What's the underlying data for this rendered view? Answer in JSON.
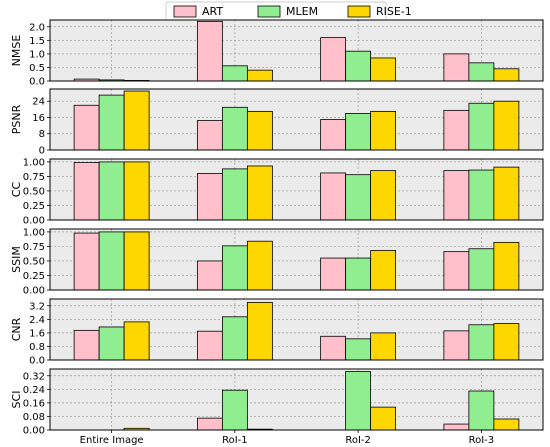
{
  "legend": [
    {
      "label": "ART",
      "color": "#ffc0cb"
    },
    {
      "label": "MLEM",
      "color": "#90ee90"
    },
    {
      "label": "RISE-1",
      "color": "#ffd700"
    }
  ],
  "chart_data": [
    {
      "type": "bar",
      "ylabel": "NMSE",
      "categories": [
        "Entire Image",
        "RoI-1",
        "RoI-2",
        "RoI-3"
      ],
      "ylim": [
        0,
        2.25
      ],
      "yticks": [
        "0.0",
        "0.5",
        "1.0",
        "1.5",
        "2.0"
      ],
      "ytick_values": [
        0,
        0.5,
        1.0,
        1.5,
        2.0
      ],
      "series": [
        {
          "name": "ART",
          "values": [
            0.07,
            2.2,
            1.6,
            1.0
          ]
        },
        {
          "name": "MLEM",
          "values": [
            0.04,
            0.56,
            1.1,
            0.67
          ]
        },
        {
          "name": "RISE-1",
          "values": [
            0.02,
            0.4,
            0.85,
            0.45
          ]
        }
      ]
    },
    {
      "type": "bar",
      "ylabel": "PSNR",
      "categories": [
        "Entire Image",
        "RoI-1",
        "RoI-2",
        "RoI-3"
      ],
      "ylim": [
        0,
        30
      ],
      "yticks": [
        "0",
        "8",
        "16",
        "24"
      ],
      "ytick_values": [
        0,
        8,
        16,
        24
      ],
      "series": [
        {
          "name": "ART",
          "values": [
            22,
            14.5,
            15,
            19.5
          ]
        },
        {
          "name": "MLEM",
          "values": [
            27,
            21,
            18,
            23
          ]
        },
        {
          "name": "RISE-1",
          "values": [
            29,
            19,
            19,
            24
          ]
        }
      ]
    },
    {
      "type": "bar",
      "ylabel": "CC",
      "categories": [
        "Entire Image",
        "RoI-1",
        "RoI-2",
        "RoI-3"
      ],
      "ylim": [
        0,
        1.05
      ],
      "yticks": [
        "0.00",
        "0.25",
        "0.50",
        "0.75",
        "1.00"
      ],
      "ytick_values": [
        0,
        0.25,
        0.5,
        0.75,
        1.0
      ],
      "series": [
        {
          "name": "ART",
          "values": [
            0.99,
            0.8,
            0.81,
            0.85
          ]
        },
        {
          "name": "MLEM",
          "values": [
            1.0,
            0.88,
            0.78,
            0.86
          ]
        },
        {
          "name": "RISE-1",
          "values": [
            1.0,
            0.93,
            0.85,
            0.91
          ]
        }
      ]
    },
    {
      "type": "bar",
      "ylabel": "SSIM",
      "categories": [
        "Entire Image",
        "RoI-1",
        "RoI-2",
        "RoI-3"
      ],
      "ylim": [
        0,
        1.05
      ],
      "yticks": [
        "0.00",
        "0.25",
        "0.50",
        "0.75",
        "1.00"
      ],
      "ytick_values": [
        0,
        0.25,
        0.5,
        0.75,
        1.0
      ],
      "series": [
        {
          "name": "ART",
          "values": [
            0.98,
            0.5,
            0.55,
            0.66
          ]
        },
        {
          "name": "MLEM",
          "values": [
            1.0,
            0.76,
            0.55,
            0.71
          ]
        },
        {
          "name": "RISE-1",
          "values": [
            1.0,
            0.84,
            0.68,
            0.82
          ]
        }
      ]
    },
    {
      "type": "bar",
      "ylabel": "CNR",
      "categories": [
        "Entire Image",
        "RoI-1",
        "RoI-2",
        "RoI-3"
      ],
      "ylim": [
        0,
        3.6
      ],
      "yticks": [
        "0.0",
        "0.8",
        "1.6",
        "2.4",
        "3.2"
      ],
      "ytick_values": [
        0,
        0.8,
        1.6,
        2.4,
        3.2
      ],
      "series": [
        {
          "name": "ART",
          "values": [
            1.75,
            1.7,
            1.4,
            1.72
          ]
        },
        {
          "name": "MLEM",
          "values": [
            1.95,
            2.55,
            1.25,
            2.08
          ]
        },
        {
          "name": "RISE-1",
          "values": [
            2.25,
            3.4,
            1.6,
            2.15
          ]
        }
      ]
    },
    {
      "type": "bar",
      "ylabel": "SCI",
      "categories": [
        "Entire Image",
        "RoI-1",
        "RoI-2",
        "RoI-3"
      ],
      "ylim": [
        0,
        0.36
      ],
      "yticks": [
        "0.00",
        "0.08",
        "0.16",
        "0.24",
        "0.32"
      ],
      "ytick_values": [
        0,
        0.08,
        0.16,
        0.24,
        0.32
      ],
      "series": [
        {
          "name": "ART",
          "values": [
            0.0,
            0.07,
            0.0,
            0.035
          ]
        },
        {
          "name": "MLEM",
          "values": [
            0.0,
            0.235,
            0.345,
            0.23
          ]
        },
        {
          "name": "RISE-1",
          "values": [
            0.01,
            0.005,
            0.135,
            0.065
          ]
        }
      ]
    }
  ]
}
